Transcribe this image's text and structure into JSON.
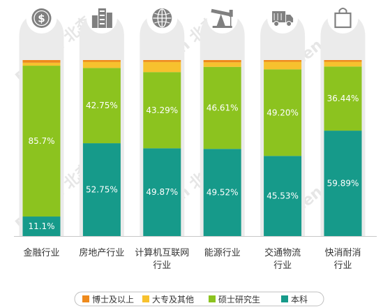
{
  "chart_data": {
    "type": "bar",
    "stacked": true,
    "normalized": true,
    "categories": [
      [
        "金融行业"
      ],
      [
        "房地产行业"
      ],
      [
        "计算机互联网",
        "行业"
      ],
      [
        "能源行业"
      ],
      [
        "交通物流",
        "行业"
      ],
      [
        "快消耐消",
        "行业"
      ]
    ],
    "category_icons": [
      "dollar-coin-icon",
      "buildings-icon",
      "globe-icon",
      "oil-pump-icon",
      "truck-icon",
      "shopping-bag-icon"
    ],
    "series": [
      {
        "name": "本科",
        "color": "#169a8a",
        "values": [
          11.1,
          52.75,
          49.87,
          49.52,
          45.53,
          59.89
        ],
        "labels": [
          "11.1%",
          "52.75%",
          "49.87%",
          "49.52%",
          "45.53%",
          "59.89%"
        ]
      },
      {
        "name": "硕士研究生",
        "color": "#8cc31f",
        "values": [
          85.7,
          42.75,
          43.29,
          46.61,
          49.2,
          36.44
        ],
        "labels": [
          "85.7%",
          "42.75%",
          "43.29%",
          "46.61%",
          "49.20%",
          "36.44%"
        ]
      },
      {
        "name": "大专及其他",
        "color": "#f7c12e",
        "values": [
          1.7,
          3.5,
          5.8,
          2.6,
          4.3,
          2.7
        ],
        "labels": []
      },
      {
        "name": "博士及以上",
        "color": "#ee8a1c",
        "values": [
          1.5,
          1.0,
          1.04,
          1.27,
          0.97,
          0.97
        ],
        "labels": []
      }
    ],
    "legend_order": [
      "博士及以上",
      "大专及其他",
      "硕士研究生",
      "本科"
    ],
    "legend": "bottom",
    "ylim": [
      0,
      100
    ],
    "grid": false
  },
  "watermark": "Beisen 北森",
  "colors": {
    "track": "#ebebeb",
    "icon": "#808080"
  }
}
